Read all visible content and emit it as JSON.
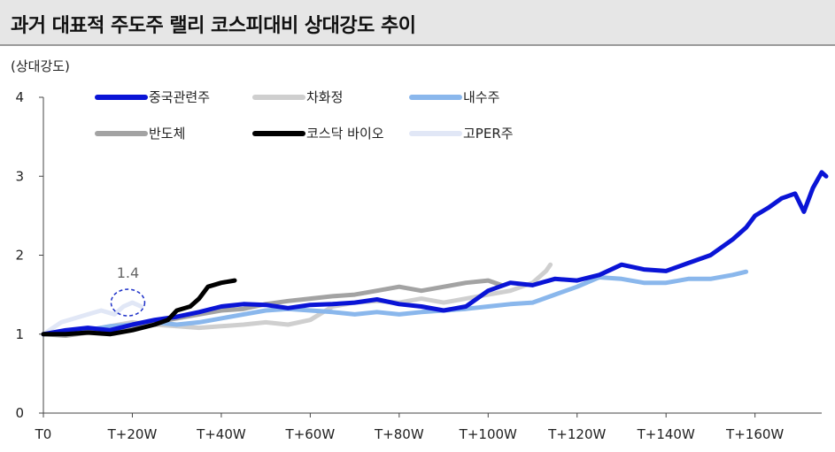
{
  "title": "과거 대표적 주도주 랠리 코스피대비 상대강도 추이",
  "chart_data": {
    "type": "line",
    "title": "과거 대표적 주도주 랠리 코스피대비 상대강도 추이",
    "ylabel": "(상대강도)",
    "xlabel": "",
    "x_domain": [
      0,
      175
    ],
    "ylim": [
      0,
      4
    ],
    "y_ticks": [
      0,
      1,
      2,
      3,
      4
    ],
    "x_ticks": [
      {
        "pos": 0,
        "label": "T0"
      },
      {
        "pos": 20,
        "label": "T+20W"
      },
      {
        "pos": 40,
        "label": "T+40W"
      },
      {
        "pos": 60,
        "label": "T+60W"
      },
      {
        "pos": 80,
        "label": "T+80W"
      },
      {
        "pos": 100,
        "label": "T+100W"
      },
      {
        "pos": 120,
        "label": "T+120W"
      },
      {
        "pos": 140,
        "label": "T+140W"
      },
      {
        "pos": 160,
        "label": "T+160W"
      }
    ],
    "grid": false,
    "legend": "top-left",
    "annotation": {
      "text": "1.4",
      "x": 19,
      "y": 1.4
    },
    "series": [
      {
        "name": "중국관련주",
        "color": "#0a14d6",
        "points": [
          [
            0,
            1.0
          ],
          [
            5,
            1.05
          ],
          [
            10,
            1.08
          ],
          [
            15,
            1.05
          ],
          [
            20,
            1.12
          ],
          [
            25,
            1.18
          ],
          [
            30,
            1.22
          ],
          [
            35,
            1.28
          ],
          [
            40,
            1.35
          ],
          [
            45,
            1.38
          ],
          [
            50,
            1.37
          ],
          [
            55,
            1.33
          ],
          [
            60,
            1.37
          ],
          [
            65,
            1.38
          ],
          [
            70,
            1.4
          ],
          [
            75,
            1.44
          ],
          [
            80,
            1.38
          ],
          [
            85,
            1.35
          ],
          [
            90,
            1.3
          ],
          [
            95,
            1.35
          ],
          [
            100,
            1.55
          ],
          [
            105,
            1.65
          ],
          [
            110,
            1.62
          ],
          [
            115,
            1.7
          ],
          [
            120,
            1.68
          ],
          [
            125,
            1.75
          ],
          [
            130,
            1.88
          ],
          [
            135,
            1.82
          ],
          [
            140,
            1.8
          ],
          [
            145,
            1.9
          ],
          [
            150,
            2.0
          ],
          [
            155,
            2.2
          ],
          [
            158,
            2.35
          ],
          [
            160,
            2.5
          ],
          [
            163,
            2.6
          ],
          [
            166,
            2.72
          ],
          [
            169,
            2.78
          ],
          [
            171,
            2.55
          ],
          [
            173,
            2.85
          ],
          [
            175,
            3.05
          ],
          [
            176,
            3.0
          ]
        ]
      },
      {
        "name": "차화정",
        "color": "#cfcfcf",
        "points": [
          [
            0,
            1.0
          ],
          [
            5,
            1.0
          ],
          [
            10,
            1.05
          ],
          [
            15,
            1.1
          ],
          [
            20,
            1.15
          ],
          [
            25,
            1.12
          ],
          [
            30,
            1.1
          ],
          [
            35,
            1.08
          ],
          [
            40,
            1.1
          ],
          [
            45,
            1.12
          ],
          [
            50,
            1.15
          ],
          [
            55,
            1.12
          ],
          [
            60,
            1.18
          ],
          [
            65,
            1.35
          ],
          [
            70,
            1.4
          ],
          [
            75,
            1.42
          ],
          [
            80,
            1.4
          ],
          [
            85,
            1.45
          ],
          [
            90,
            1.4
          ],
          [
            95,
            1.45
          ],
          [
            100,
            1.5
          ],
          [
            105,
            1.55
          ],
          [
            110,
            1.65
          ],
          [
            113,
            1.8
          ],
          [
            114,
            1.88
          ]
        ]
      },
      {
        "name": "내수주",
        "color": "#8ab7ec",
        "points": [
          [
            0,
            1.0
          ],
          [
            5,
            1.02
          ],
          [
            10,
            1.05
          ],
          [
            15,
            1.1
          ],
          [
            20,
            1.12
          ],
          [
            25,
            1.15
          ],
          [
            30,
            1.12
          ],
          [
            35,
            1.15
          ],
          [
            40,
            1.2
          ],
          [
            45,
            1.25
          ],
          [
            50,
            1.3
          ],
          [
            55,
            1.32
          ],
          [
            60,
            1.3
          ],
          [
            65,
            1.28
          ],
          [
            70,
            1.25
          ],
          [
            75,
            1.28
          ],
          [
            80,
            1.25
          ],
          [
            85,
            1.28
          ],
          [
            90,
            1.3
          ],
          [
            95,
            1.32
          ],
          [
            100,
            1.35
          ],
          [
            105,
            1.38
          ],
          [
            110,
            1.4
          ],
          [
            115,
            1.5
          ],
          [
            120,
            1.6
          ],
          [
            125,
            1.72
          ],
          [
            130,
            1.7
          ],
          [
            135,
            1.65
          ],
          [
            140,
            1.65
          ],
          [
            145,
            1.7
          ],
          [
            150,
            1.7
          ],
          [
            155,
            1.75
          ],
          [
            158,
            1.79
          ]
        ]
      },
      {
        "name": "반도체",
        "color": "#a3a3a3",
        "points": [
          [
            0,
            1.0
          ],
          [
            5,
            0.98
          ],
          [
            10,
            1.02
          ],
          [
            15,
            1.05
          ],
          [
            20,
            1.1
          ],
          [
            25,
            1.15
          ],
          [
            30,
            1.2
          ],
          [
            35,
            1.25
          ],
          [
            40,
            1.3
          ],
          [
            45,
            1.32
          ],
          [
            50,
            1.38
          ],
          [
            55,
            1.42
          ],
          [
            60,
            1.45
          ],
          [
            65,
            1.48
          ],
          [
            70,
            1.5
          ],
          [
            75,
            1.55
          ],
          [
            80,
            1.6
          ],
          [
            85,
            1.55
          ],
          [
            90,
            1.6
          ],
          [
            95,
            1.65
          ],
          [
            100,
            1.68
          ],
          [
            103,
            1.62
          ]
        ]
      },
      {
        "name": "코스닥 바이오",
        "color": "#000000",
        "points": [
          [
            0,
            1.0
          ],
          [
            5,
            1.0
          ],
          [
            10,
            1.02
          ],
          [
            15,
            1.0
          ],
          [
            20,
            1.05
          ],
          [
            25,
            1.12
          ],
          [
            28,
            1.18
          ],
          [
            30,
            1.3
          ],
          [
            33,
            1.35
          ],
          [
            35,
            1.45
          ],
          [
            37,
            1.6
          ],
          [
            40,
            1.65
          ],
          [
            43,
            1.68
          ]
        ]
      },
      {
        "name": "고PER주",
        "color": "#e1e7f6",
        "points": [
          [
            0,
            1.0
          ],
          [
            4,
            1.15
          ],
          [
            7,
            1.2
          ],
          [
            10,
            1.25
          ],
          [
            13,
            1.3
          ],
          [
            16,
            1.25
          ],
          [
            18,
            1.35
          ],
          [
            20,
            1.4
          ],
          [
            22,
            1.35
          ]
        ]
      }
    ]
  }
}
